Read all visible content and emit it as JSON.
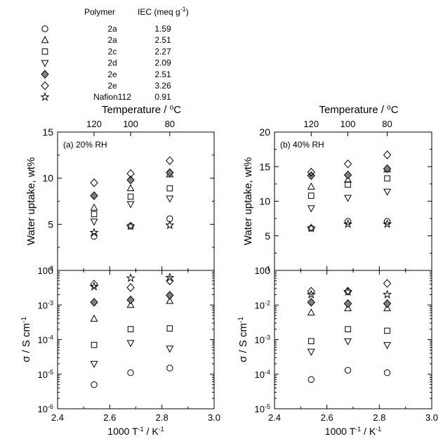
{
  "legend": {
    "header_polymer": "Polymer",
    "header_iec": "IEC (meq g",
    "header_iec_sup": "-1",
    "header_iec_close": ")",
    "entries": [
      {
        "marker": "circle",
        "polymer": "2a",
        "iec": "1.59"
      },
      {
        "marker": "triangle-up",
        "polymer": "2a",
        "iec": "2.51"
      },
      {
        "marker": "square",
        "polymer": "2c",
        "iec": "2.27"
      },
      {
        "marker": "triangle-down",
        "polymer": "2d",
        "iec": "2.09"
      },
      {
        "marker": "diamond-filled",
        "polymer": "2e",
        "iec": "2.51"
      },
      {
        "marker": "diamond",
        "polymer": "2e",
        "iec": "3.26"
      },
      {
        "marker": "star",
        "polymer": "Nafion112",
        "iec": "0.91"
      }
    ]
  },
  "chart_data": [
    {
      "type": "scatter",
      "panel": "left",
      "panel_label": "(a) 20% RH",
      "top_axis_title": "Temperature / °C",
      "top_ticks": [
        "120",
        "100",
        "80"
      ],
      "top": {
        "ylabel": "Water uptake, wt%",
        "ylim": [
          0,
          15
        ],
        "yticks": [
          "0",
          "5",
          "10",
          "15"
        ],
        "x": [
          2.54,
          2.68,
          2.83
        ],
        "series": [
          {
            "marker": "circle",
            "values": [
              3.7,
              4.8,
              5.6
            ]
          },
          {
            "marker": "triangle-up",
            "values": [
              6.8,
              8.9,
              10.4
            ]
          },
          {
            "marker": "square",
            "values": [
              6.1,
              8.0,
              8.9
            ]
          },
          {
            "marker": "triangle-down",
            "values": [
              5.3,
              7.2,
              7.8
            ]
          },
          {
            "marker": "diamond-filled",
            "values": [
              8.1,
              9.8,
              10.6
            ]
          },
          {
            "marker": "diamond",
            "values": [
              9.5,
              10.5,
              11.9
            ]
          },
          {
            "marker": "star",
            "values": [
              4.1,
              4.8,
              4.9
            ]
          }
        ]
      },
      "bottom": {
        "ylabel": "σ / S cm",
        "ylabel_sup": "-1",
        "ylim_exp": [
          -6,
          -2
        ],
        "ytick_exponents": [
          "-6",
          "-5",
          "-4",
          "-3",
          "-2"
        ],
        "x": [
          2.54,
          2.68,
          2.83
        ],
        "series": [
          {
            "marker": "circle",
            "values": [
              5e-06,
              1.1e-05,
              1.5e-05
            ]
          },
          {
            "marker": "triangle-up",
            "values": [
              0.0004,
              0.001,
              0.0013
            ]
          },
          {
            "marker": "square",
            "values": [
              7e-05,
              0.0002,
              0.00021
            ]
          },
          {
            "marker": "triangle-down",
            "values": [
              2e-05,
              8e-05,
              5.5e-05
            ]
          },
          {
            "marker": "diamond-filled",
            "values": [
              0.0012,
              0.0014,
              0.0019
            ]
          },
          {
            "marker": "diamond",
            "values": [
              0.004,
              0.0032,
              0.005
            ]
          },
          {
            "marker": "star",
            "values": [
              0.0034,
              0.006,
              0.0062
            ]
          }
        ]
      },
      "xlabel": "1000 T",
      "xlabel_sup": "-1",
      "xlabel_tail": " / K",
      "xlabel_sup2": "-1",
      "xlim": [
        2.4,
        3.0
      ],
      "xticks": [
        "2.4",
        "2.6",
        "2.8",
        "3.0"
      ]
    },
    {
      "type": "scatter",
      "panel": "right",
      "panel_label": "(b) 40% RH",
      "top_axis_title": "Temperature / °C",
      "top_ticks": [
        "120",
        "100",
        "80"
      ],
      "top": {
        "ylabel": "Water uptake, wt%",
        "ylim": [
          0,
          20
        ],
        "yticks": [
          "0",
          "5",
          "10",
          "15",
          "20"
        ],
        "x": [
          2.54,
          2.68,
          2.83
        ],
        "series": [
          {
            "marker": "circle",
            "values": [
              6.1,
              7.1,
              7.1
            ]
          },
          {
            "marker": "triangle-up",
            "values": [
              12.1,
              13.1,
              14.6
            ]
          },
          {
            "marker": "square",
            "values": [
              10.8,
              12.4,
              13.3
            ]
          },
          {
            "marker": "triangle-down",
            "values": [
              9.0,
              10.5,
              11.4
            ]
          },
          {
            "marker": "diamond-filled",
            "values": [
              13.7,
              13.8,
              14.7
            ]
          },
          {
            "marker": "diamond",
            "values": [
              14.2,
              15.4,
              16.7
            ]
          },
          {
            "marker": "star",
            "values": [
              6.1,
              6.7,
              6.7
            ]
          }
        ]
      },
      "bottom": {
        "ylabel": "σ / S cm",
        "ylabel_sup": "-1",
        "ylim_exp": [
          -5,
          -1
        ],
        "ytick_exponents": [
          "-5",
          "-4",
          "-3",
          "-2",
          "-1"
        ],
        "x": [
          2.54,
          2.68,
          2.83
        ],
        "series": [
          {
            "marker": "circle",
            "values": [
              7e-05,
              0.00013,
              0.00011
            ]
          },
          {
            "marker": "triangle-up",
            "values": [
              0.006,
              0.008,
              0.008
            ]
          },
          {
            "marker": "square",
            "values": [
              0.0009,
              0.002,
              0.0018
            ]
          },
          {
            "marker": "triangle-down",
            "values": [
              0.00045,
              0.0009,
              0.0007
            ]
          },
          {
            "marker": "diamond-filled",
            "values": [
              0.012,
              0.011,
              0.011
            ]
          },
          {
            "marker": "diamond",
            "values": [
              0.025,
              0.025,
              0.042
            ]
          },
          {
            "marker": "star",
            "values": [
              0.02,
              0.024,
              0.02
            ]
          }
        ]
      },
      "xlabel": "1000 T",
      "xlabel_sup": "-1",
      "xlabel_tail": " / K",
      "xlabel_sup2": "-1",
      "xlim": [
        2.4,
        3.0
      ],
      "xticks": [
        "2.4",
        "2.6",
        "2.8",
        "3.0"
      ]
    }
  ],
  "colors": {
    "filled_marker": "#808080",
    "marker_stroke": "#000000",
    "axis": "#000000"
  }
}
